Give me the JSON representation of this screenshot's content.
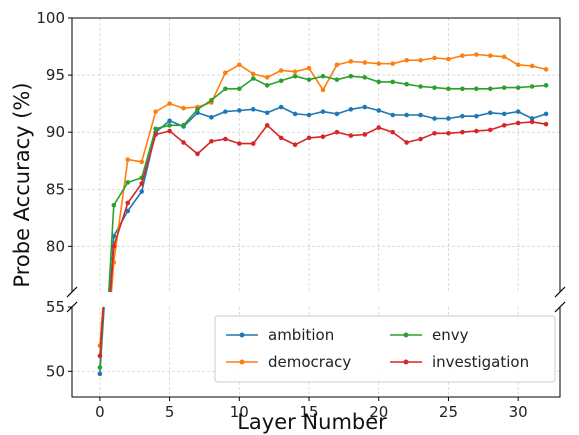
{
  "chart_data": {
    "type": "line",
    "xlabel": "Layer Number",
    "ylabel": "Probe Accuracy (%)",
    "broken_axis": true,
    "xlim": [
      -2,
      33
    ],
    "ylim_upper": [
      76,
      100
    ],
    "ylim_lower": [
      48,
      55
    ],
    "xticks": [
      0,
      5,
      10,
      15,
      20,
      25,
      30
    ],
    "yticks_upper": [
      80,
      85,
      90,
      95,
      100
    ],
    "yticks_lower": [
      50,
      55
    ],
    "grid": true,
    "legend_position": "lower-right",
    "legend_columns": 2,
    "x": [
      0,
      1,
      2,
      3,
      4,
      5,
      6,
      7,
      8,
      9,
      10,
      11,
      12,
      13,
      14,
      15,
      16,
      17,
      18,
      19,
      20,
      21,
      22,
      23,
      24,
      25,
      26,
      27,
      28,
      29,
      30,
      31,
      32
    ],
    "series": [
      {
        "name": "ambition",
        "color": "#1f77b4",
        "values": [
          49.8,
          80.9,
          83.1,
          84.8,
          90.0,
          91.0,
          90.5,
          91.7,
          91.3,
          91.8,
          91.9,
          92.0,
          91.7,
          92.2,
          91.6,
          91.5,
          91.8,
          91.6,
          92.0,
          92.2,
          91.9,
          91.5,
          91.5,
          91.5,
          91.2,
          91.2,
          91.4,
          91.4,
          91.7,
          91.6,
          91.8,
          91.2,
          91.6
        ]
      },
      {
        "name": "democracy",
        "color": "#ff7f0e",
        "values": [
          52.0,
          78.6,
          87.6,
          87.4,
          91.8,
          92.5,
          92.1,
          92.2,
          92.6,
          95.2,
          95.9,
          95.1,
          94.8,
          95.4,
          95.3,
          95.6,
          93.7,
          95.9,
          96.2,
          96.1,
          96.0,
          96.0,
          96.3,
          96.3,
          96.5,
          96.4,
          96.7,
          96.8,
          96.7,
          96.6,
          95.9,
          95.8,
          95.5
        ]
      },
      {
        "name": "envy",
        "color": "#2ca02c",
        "values": [
          50.3,
          83.6,
          85.6,
          86.0,
          90.3,
          90.6,
          90.6,
          92.0,
          92.8,
          93.8,
          93.8,
          94.7,
          94.1,
          94.5,
          94.9,
          94.6,
          94.9,
          94.6,
          94.9,
          94.8,
          94.4,
          94.4,
          94.2,
          94.0,
          93.9,
          93.8,
          93.8,
          93.8,
          93.8,
          93.9,
          93.9,
          94.0,
          94.1
        ]
      },
      {
        "name": "investigation",
        "color": "#d62728",
        "values": [
          51.2,
          80.0,
          83.8,
          85.5,
          89.8,
          90.1,
          89.1,
          88.1,
          89.2,
          89.4,
          89.0,
          89.0,
          90.6,
          89.5,
          88.9,
          89.5,
          89.6,
          90.0,
          89.7,
          89.8,
          90.4,
          90.0,
          89.1,
          89.4,
          89.9,
          89.9,
          90.0,
          90.1,
          90.2,
          90.6,
          90.8,
          90.9,
          90.7
        ]
      }
    ]
  }
}
